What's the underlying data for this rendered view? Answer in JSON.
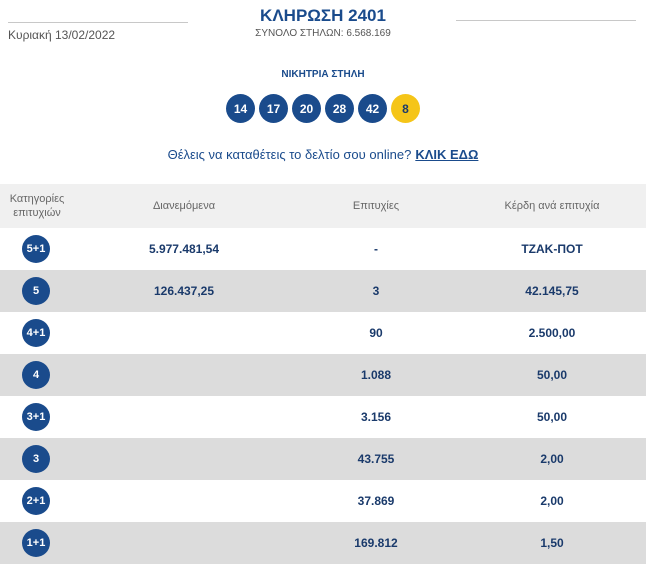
{
  "header": {
    "date": "Κυριακή 13/02/2022",
    "draw_title": "ΚΛΗΡΩΣΗ 2401",
    "total_columns": "ΣΥΝΟΛΟ ΣΤΗΛΩΝ: 6.568.169"
  },
  "winning": {
    "label": "ΝΙΚΗΤΡΙΑ ΣΤΗΛΗ",
    "numbers": [
      "14",
      "17",
      "20",
      "28",
      "42"
    ],
    "joker": "8"
  },
  "promo": {
    "text": "Θέλεις να καταθέτεις το δελτίο σου online?",
    "link": "ΚΛΙΚ ΕΔΩ"
  },
  "table": {
    "headers": [
      "Κατηγορίες επιτυχιών",
      "Διανεμόμενα",
      "Επιτυχίες",
      "Κέρδη ανά επιτυχία"
    ],
    "rows": [
      {
        "category": "5+1",
        "distributed": "5.977.481,54",
        "winners": "-",
        "prize": "ΤΖΑΚ-ΠΟΤ"
      },
      {
        "category": "5",
        "distributed": "126.437,25",
        "winners": "3",
        "prize": "42.145,75"
      },
      {
        "category": "4+1",
        "distributed": "",
        "winners": "90",
        "prize": "2.500,00"
      },
      {
        "category": "4",
        "distributed": "",
        "winners": "1.088",
        "prize": "50,00"
      },
      {
        "category": "3+1",
        "distributed": "",
        "winners": "3.156",
        "prize": "50,00"
      },
      {
        "category": "3",
        "distributed": "",
        "winners": "43.755",
        "prize": "2,00"
      },
      {
        "category": "2+1",
        "distributed": "",
        "winners": "37.869",
        "prize": "2,00"
      },
      {
        "category": "1+1",
        "distributed": "",
        "winners": "169.812",
        "prize": "1,50"
      }
    ]
  },
  "colors": {
    "primary": "#1a4b8c",
    "joker": "#f5c518",
    "row_alt": "#dcdcdc",
    "header_bg": "#f0f0f0"
  }
}
